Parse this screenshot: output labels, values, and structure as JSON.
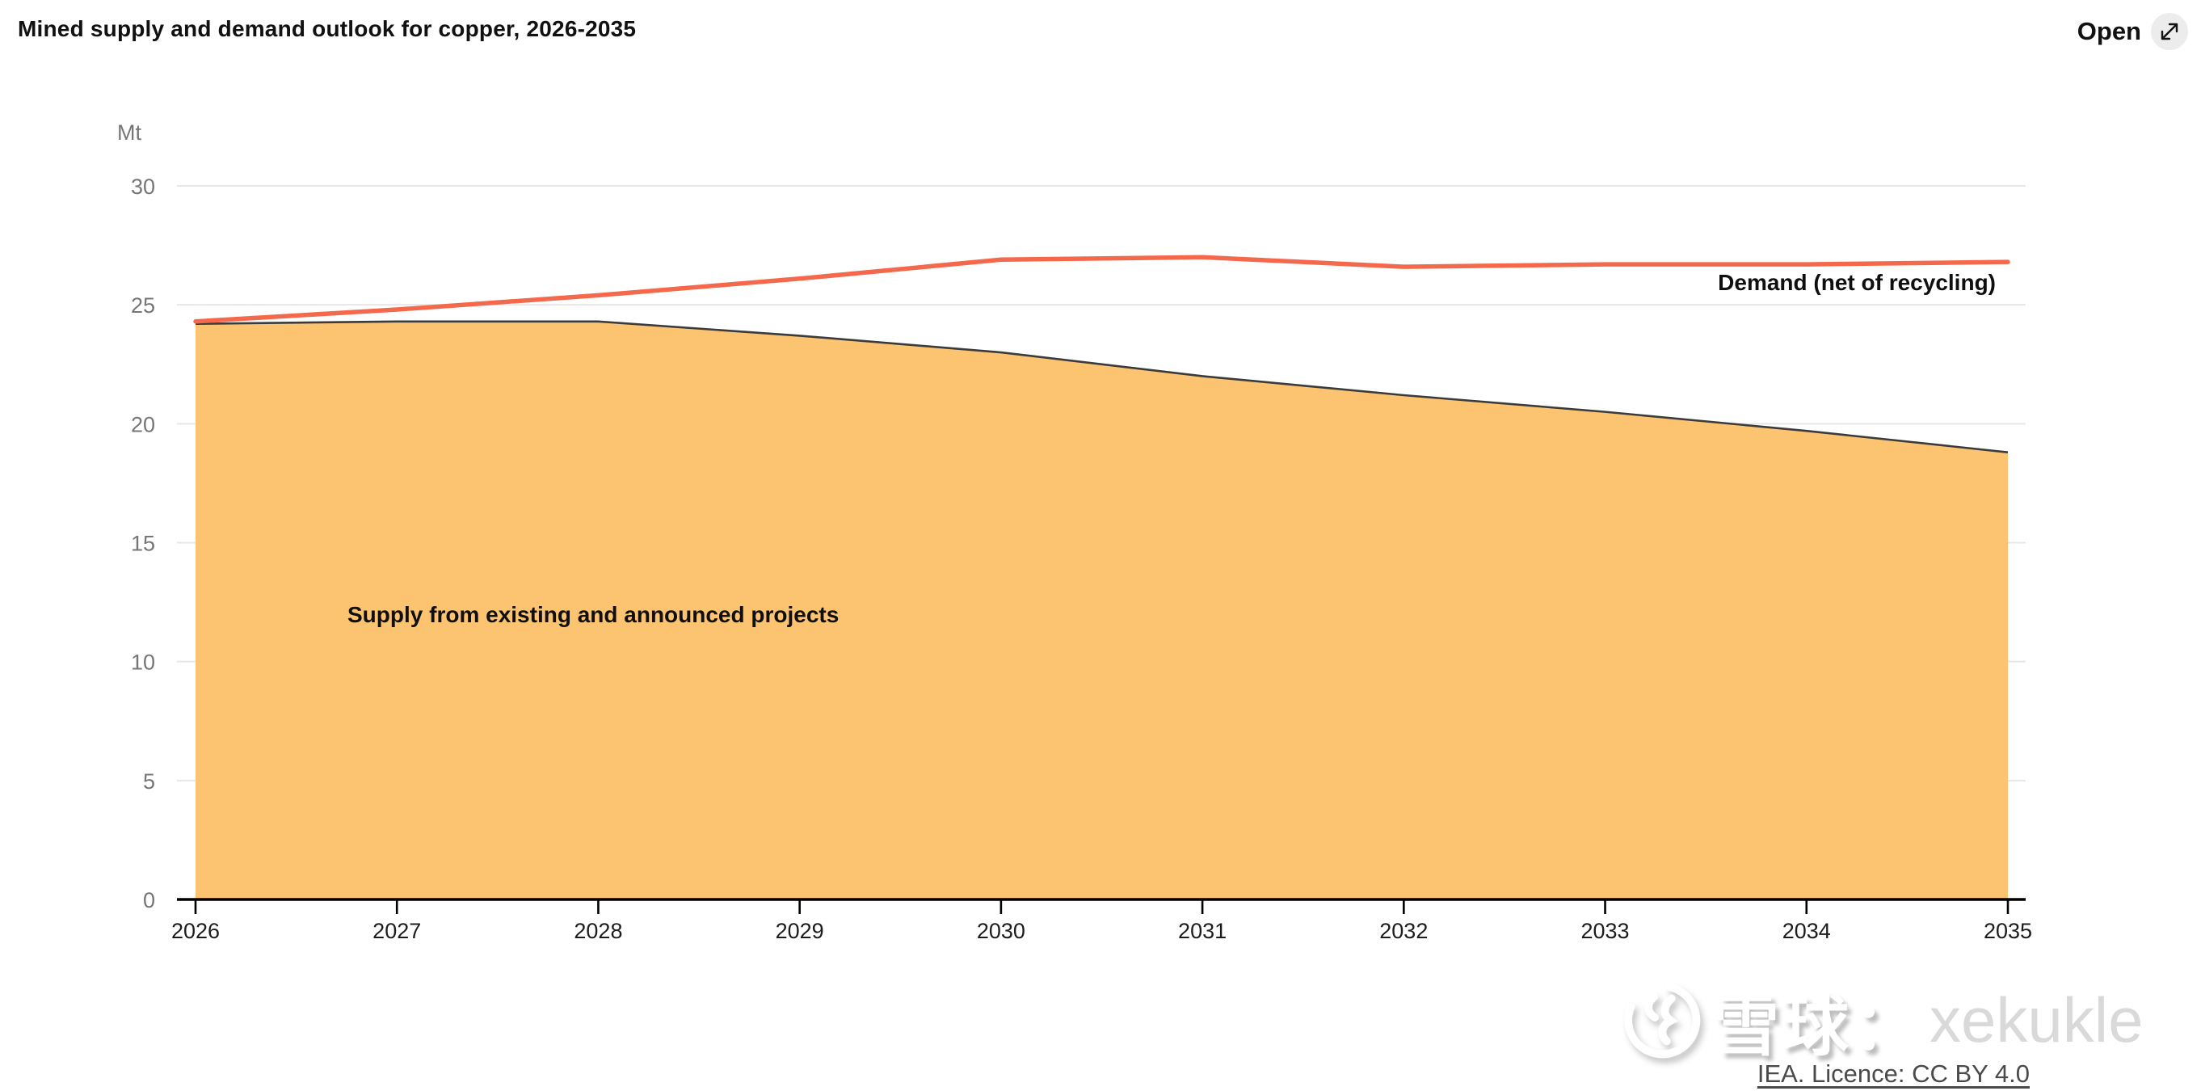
{
  "header": {
    "title": "Mined supply and demand outlook for copper, 2026-2035",
    "open_label": "Open",
    "open_icon": "expand-diagonal-arrow"
  },
  "chart_data": {
    "type": "area",
    "title": "Mined supply and demand outlook for copper, 2026-2035",
    "unit_label": "Mt",
    "xlabel": "",
    "ylabel": "Mt",
    "x": [
      2026,
      2027,
      2028,
      2029,
      2030,
      2031,
      2032,
      2033,
      2034,
      2035
    ],
    "series": [
      {
        "name": "Supply from existing and announced projects",
        "type": "area",
        "fill_color": "#fcc371",
        "line_color": "#3b3b3b",
        "values": [
          24.2,
          24.3,
          24.3,
          23.7,
          23.0,
          22.0,
          21.2,
          20.5,
          19.7,
          18.8
        ]
      },
      {
        "name": "Demand (net of recycling)",
        "type": "line",
        "line_color": "#f4694c",
        "values": [
          24.3,
          24.8,
          25.4,
          26.1,
          26.9,
          27.0,
          26.6,
          26.7,
          26.7,
          26.8
        ]
      }
    ],
    "ylim": [
      0,
      30
    ],
    "y_ticks": [
      0,
      5,
      10,
      15,
      20,
      25,
      30
    ],
    "grid": "horizontal",
    "legend_position": "inline-annotations",
    "colors": {
      "gridline": "#e7e7e7",
      "axis": "#000000",
      "y_tick_text": "#767676",
      "x_tick_text": "#1c1c1c"
    }
  },
  "footer": {
    "watermark_logo": "xueqiu-snowball-logo",
    "watermark_text": "雪球：",
    "watermark_handle": "xekukle",
    "licence_link": "IEA. Licence: CC BY 4.0"
  }
}
